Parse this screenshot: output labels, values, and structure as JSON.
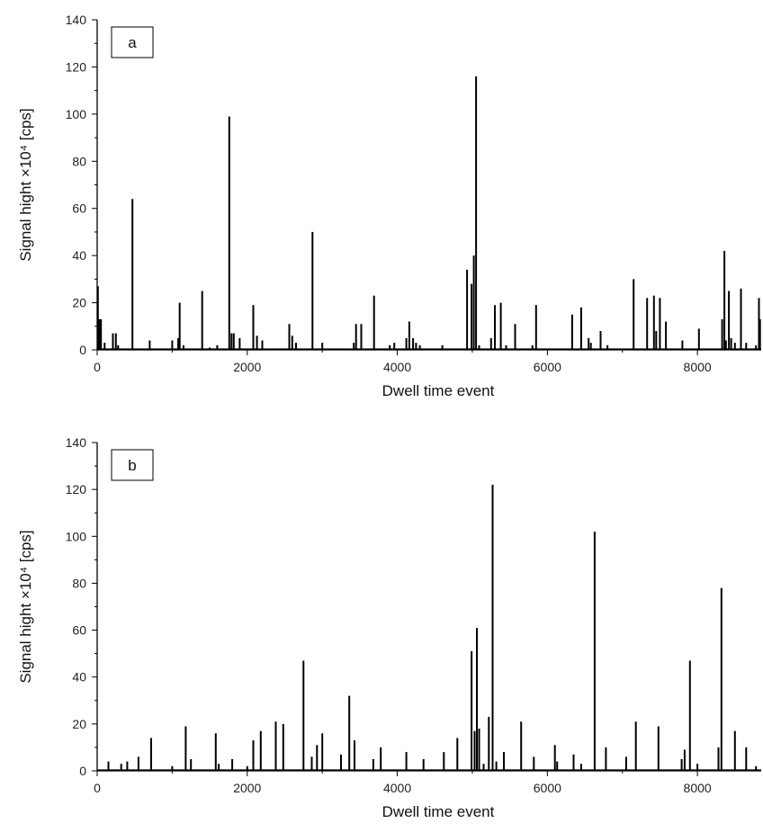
{
  "chart_data": [
    {
      "type": "bar",
      "panel_label": "a",
      "xlabel": "Dwell time event",
      "ylabel": "Signal hight ×10⁴ [cps]",
      "xlim": [
        0,
        8850
      ],
      "ylim": [
        0,
        140
      ],
      "xticks": [
        0,
        2000,
        4000,
        6000,
        8000
      ],
      "yticks": [
        0,
        20,
        40,
        60,
        80,
        100,
        120,
        140
      ],
      "color": "#000000",
      "x": [
        10,
        30,
        50,
        100,
        210,
        250,
        280,
        470,
        700,
        1000,
        1080,
        1100,
        1150,
        1400,
        1500,
        1600,
        1760,
        1790,
        1820,
        1900,
        2080,
        2130,
        2200,
        2560,
        2600,
        2650,
        2870,
        3000,
        3420,
        3450,
        3520,
        3690,
        3900,
        3960,
        4120,
        4160,
        4210,
        4250,
        4300,
        4600,
        4930,
        4990,
        5020,
        5050,
        5090,
        5250,
        5300,
        5380,
        5450,
        5570,
        5800,
        5850,
        6330,
        6450,
        6550,
        6580,
        6710,
        6800,
        7150,
        7330,
        7420,
        7450,
        7500,
        7580,
        7800,
        8020,
        8330,
        8360,
        8380,
        8420,
        8450,
        8500,
        8580,
        8650,
        8780,
        8820,
        8835
      ],
      "y": [
        27,
        13,
        13,
        3,
        7,
        7,
        2,
        64,
        4,
        4,
        5,
        20,
        2,
        25,
        1,
        2,
        99,
        7,
        7,
        5,
        19,
        6,
        4,
        11,
        6,
        3,
        50,
        3,
        3,
        11,
        11,
        23,
        2,
        3,
        5,
        12,
        5,
        3,
        2,
        2,
        34,
        28,
        40,
        116,
        2,
        5,
        19,
        20,
        2,
        11,
        2,
        19,
        15,
        18,
        5,
        3,
        8,
        2,
        30,
        22,
        23,
        8,
        22,
        12,
        4,
        9,
        13,
        42,
        4,
        25,
        5,
        3,
        26,
        3,
        2,
        22,
        13
      ]
    },
    {
      "type": "bar",
      "panel_label": "b",
      "xlabel": "Dwell time event",
      "ylabel": "Signal hight ×10⁴ [cps]",
      "xlim": [
        0,
        8850
      ],
      "ylim": [
        0,
        140
      ],
      "xticks": [
        0,
        2000,
        4000,
        6000,
        8000
      ],
      "yticks": [
        0,
        20,
        40,
        60,
        80,
        100,
        120,
        140
      ],
      "color": "#000000",
      "x": [
        150,
        320,
        400,
        550,
        720,
        1000,
        1180,
        1250,
        1580,
        1620,
        1800,
        2000,
        2080,
        2180,
        2380,
        2480,
        2750,
        2860,
        2930,
        3000,
        3250,
        3360,
        3430,
        3680,
        3780,
        4120,
        4350,
        4620,
        4800,
        4990,
        5030,
        5060,
        5090,
        5150,
        5220,
        5270,
        5320,
        5420,
        5650,
        5820,
        6100,
        6130,
        6350,
        6450,
        6630,
        6780,
        7050,
        7180,
        7480,
        7790,
        7830,
        7900,
        8000,
        8280,
        8320,
        8500,
        8650,
        8780
      ],
      "y": [
        4,
        3,
        4,
        6,
        14,
        2,
        19,
        5,
        16,
        3,
        5,
        2,
        13,
        17,
        21,
        20,
        47,
        6,
        11,
        16,
        7,
        32,
        13,
        5,
        10,
        8,
        5,
        8,
        14,
        51,
        17,
        61,
        18,
        3,
        23,
        122,
        4,
        8,
        21,
        6,
        11,
        4,
        7,
        3,
        102,
        10,
        6,
        21,
        19,
        5,
        9,
        47,
        3,
        10,
        78,
        17,
        10,
        2
      ]
    }
  ]
}
